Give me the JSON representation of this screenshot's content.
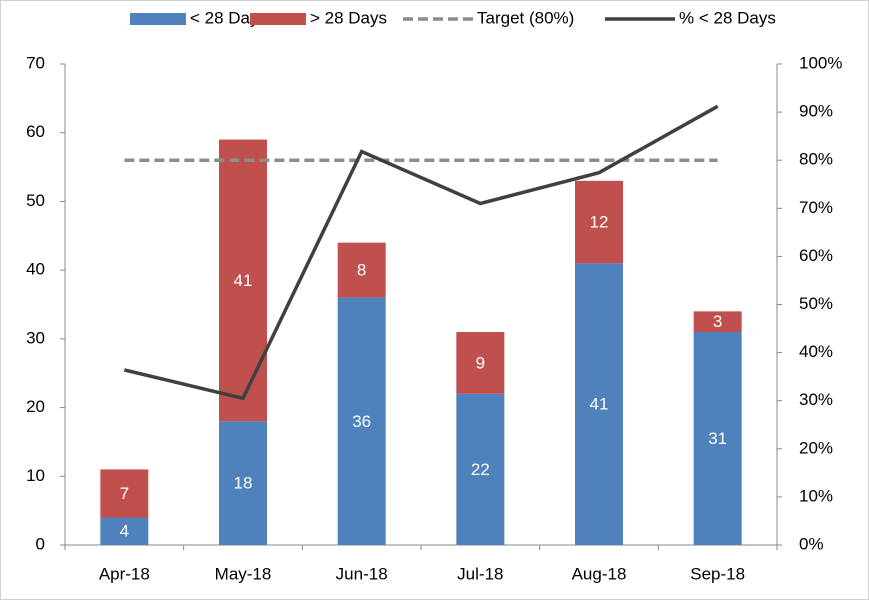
{
  "chart_data": {
    "type": "bar",
    "categories": [
      "Apr-18",
      "May-18",
      "Jun-18",
      "Jul-18",
      "Aug-18",
      "Sep-18"
    ],
    "series": [
      {
        "name": "< 28 Days",
        "type": "bar",
        "color": "#4f81bd",
        "values": [
          4,
          18,
          36,
          22,
          41,
          31
        ]
      },
      {
        "name": "> 28 Days",
        "type": "bar",
        "color": "#c0504d",
        "values": [
          7,
          41,
          8,
          9,
          12,
          3
        ]
      },
      {
        "name": "Target (80%)",
        "type": "line",
        "dashed": true,
        "axis": "y2",
        "color": "#8c8c8c",
        "values": [
          80,
          80,
          80,
          80,
          80,
          80
        ]
      },
      {
        "name": "% < 28 Days",
        "type": "line",
        "axis": "y2",
        "color": "#404040",
        "values": [
          36.4,
          30.5,
          81.8,
          71.0,
          77.4,
          91.2
        ]
      }
    ],
    "stacked": true,
    "ylim": [
      0,
      70
    ],
    "yticks": [
      0,
      10,
      20,
      30,
      40,
      50,
      60,
      70
    ],
    "y2lim": [
      0,
      100
    ],
    "y2ticks": [
      {
        "value": 0,
        "label": "0%"
      },
      {
        "value": 10,
        "label": "10%"
      },
      {
        "value": 20,
        "label": "20%"
      },
      {
        "value": 30,
        "label": "30%"
      },
      {
        "value": 40,
        "label": "40%"
      },
      {
        "value": 50,
        "label": "50%"
      },
      {
        "value": 60,
        "label": "60%"
      },
      {
        "value": 70,
        "label": "70%"
      },
      {
        "value": 80,
        "label": "80%"
      },
      {
        "value": 90,
        "label": "90%"
      },
      {
        "value": 100,
        "label": "100%"
      }
    ],
    "legend": "top"
  }
}
